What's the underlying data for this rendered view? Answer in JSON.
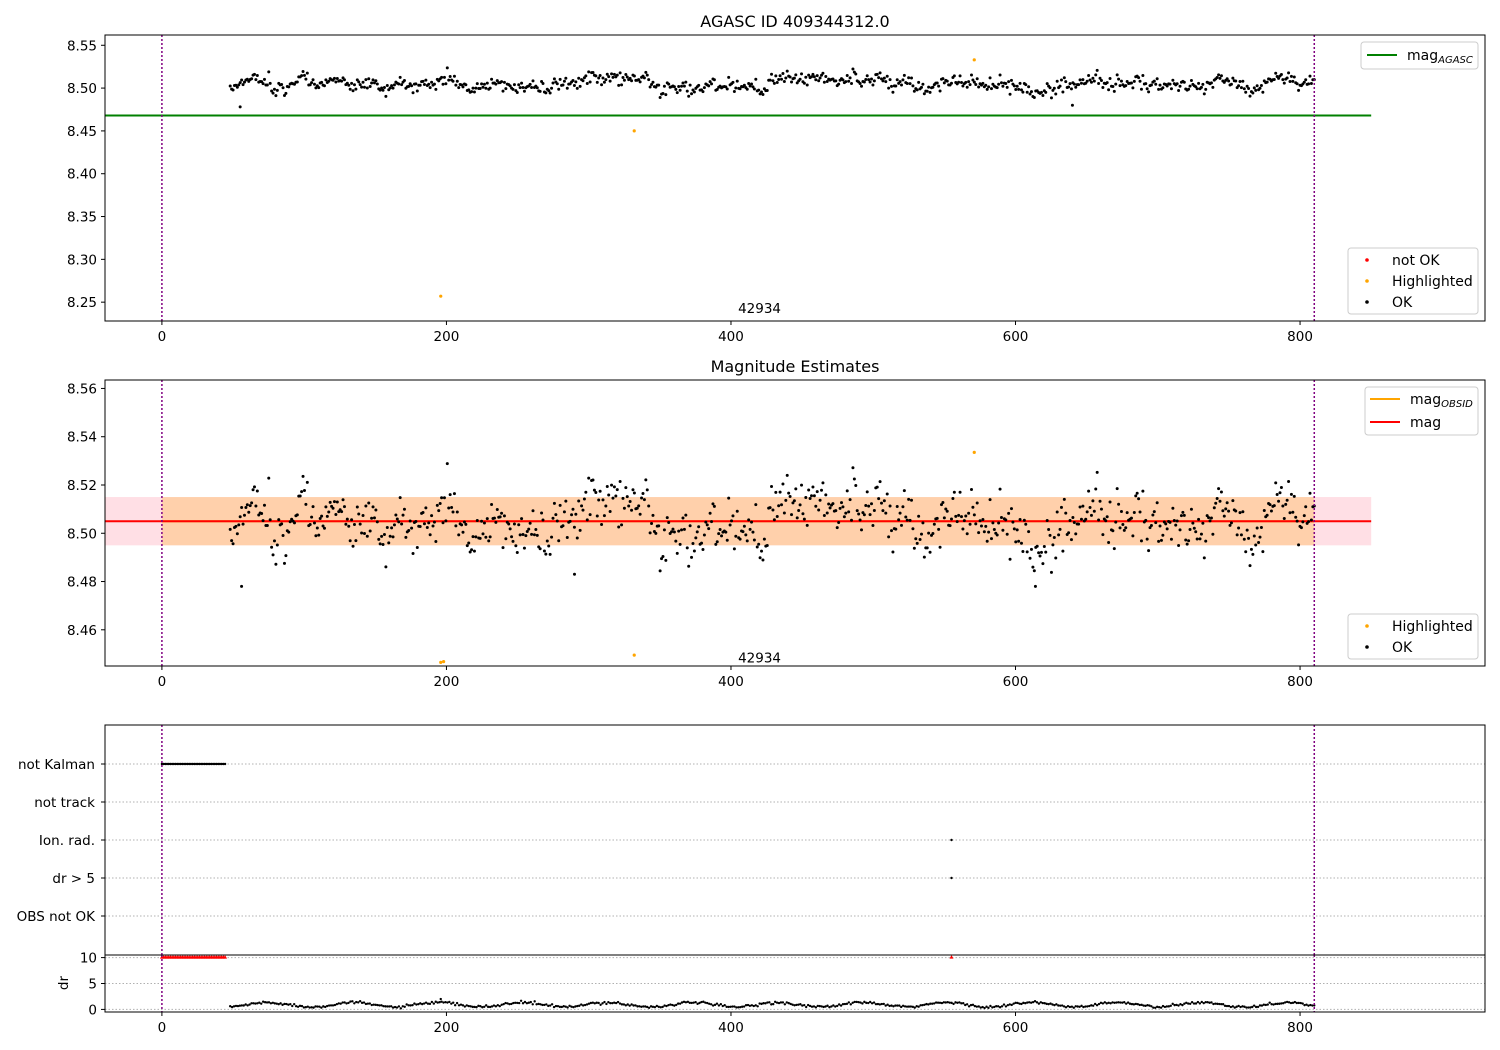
{
  "chart_data": [
    {
      "type": "scatter",
      "title": "AGASC ID 409344312.0",
      "xlabel": "",
      "ylabel": "",
      "xlim": [
        -40,
        930
      ],
      "ylim": [
        8.228,
        8.562
      ],
      "xticks": [
        0,
        200,
        400,
        600,
        800
      ],
      "yticks": [
        8.25,
        8.3,
        8.35,
        8.4,
        8.45,
        8.5,
        8.55
      ],
      "ytick_labels": [
        "8.25",
        "8.30",
        "8.35",
        "8.40",
        "8.45",
        "8.50",
        "8.55"
      ],
      "obsid_label": {
        "text": "42934",
        "x": 405,
        "y": 8.243
      },
      "vlines": [
        0,
        810
      ],
      "grid": false,
      "reference_lines": [
        {
          "name": "mag",
          "name_subscript": "AGASC",
          "y": 8.468,
          "x_range": [
            -40,
            850
          ],
          "color": "#008000"
        }
      ],
      "highlighted_points": [
        {
          "x": 196,
          "y": 8.257
        },
        {
          "x": 332,
          "y": 8.45
        },
        {
          "x": 571,
          "y": 8.533
        }
      ],
      "ok_series": {
        "x_start": 48,
        "x_end": 810,
        "count": 760,
        "mean": 8.505,
        "scatter": 0.007,
        "outliers": [
          {
            "x": 55,
            "y": 8.478
          },
          {
            "x": 640,
            "y": 8.48
          }
        ]
      },
      "legends": [
        {
          "position": "top-right",
          "entries": [
            {
              "label": "mag",
              "subscript": "AGASC",
              "kind": "line",
              "color": "#008000"
            }
          ]
        },
        {
          "position": "bottom-right",
          "entries": [
            {
              "label": "not OK",
              "kind": "point",
              "color": "#ff0000"
            },
            {
              "label": "Highlighted",
              "kind": "point",
              "color": "#ffa500"
            },
            {
              "label": "OK",
              "kind": "point",
              "color": "#000000"
            }
          ]
        }
      ]
    },
    {
      "type": "scatter",
      "title": "Magnitude Estimates",
      "xlabel": "",
      "ylabel": "",
      "xlim": [
        -40,
        930
      ],
      "ylim": [
        8.445,
        8.5635
      ],
      "xticks": [
        0,
        200,
        400,
        600,
        800
      ],
      "yticks": [
        8.46,
        8.48,
        8.5,
        8.52,
        8.54,
        8.56
      ],
      "ytick_labels": [
        "8.46",
        "8.48",
        "8.50",
        "8.52",
        "8.54",
        "8.56"
      ],
      "obsid_label": {
        "text": "42934",
        "x": 405,
        "y": 8.4485
      },
      "vlines": [
        0,
        810
      ],
      "grid": false,
      "reference_lines": [
        {
          "name": "mag",
          "name_subscript": "OBSID",
          "y": 8.505,
          "x_range": [
            0,
            810
          ],
          "color": "#ffa500"
        },
        {
          "name": "mag",
          "y": 8.505,
          "x_range": [
            -40,
            850
          ],
          "color": "#ff0000"
        }
      ],
      "bands": [
        {
          "y_range": [
            8.495,
            8.515
          ],
          "x_range": [
            -40,
            850
          ],
          "color": "#ffc0cb"
        },
        {
          "y_range": [
            8.495,
            8.515
          ],
          "x_range": [
            0,
            810
          ],
          "color": "#ffa500"
        }
      ],
      "highlighted_points": [
        {
          "x": 196,
          "y": 8.4465
        },
        {
          "x": 198,
          "y": 8.4468
        },
        {
          "x": 332,
          "y": 8.4495
        },
        {
          "x": 571,
          "y": 8.5335
        }
      ],
      "ok_series": {
        "x_start": 48,
        "x_end": 810,
        "count": 760,
        "mean": 8.505,
        "scatter": 0.009,
        "outliers": [
          {
            "x": 56,
            "y": 8.478
          },
          {
            "x": 614,
            "y": 8.478
          },
          {
            "x": 290,
            "y": 8.483
          }
        ]
      },
      "legends": [
        {
          "position": "top-right",
          "entries": [
            {
              "label": "mag",
              "subscript": "OBSID",
              "kind": "line",
              "color": "#ffa500"
            },
            {
              "label": "mag",
              "kind": "line",
              "color": "#ff0000"
            }
          ]
        },
        {
          "position": "bottom-right",
          "entries": [
            {
              "label": "Highlighted",
              "kind": "point",
              "color": "#ffa500"
            },
            {
              "label": "OK",
              "kind": "point",
              "color": "#000000"
            }
          ]
        }
      ]
    },
    {
      "type": "scatter",
      "title": "",
      "xlabel": "",
      "ylabel": "",
      "xlim": [
        -40,
        930
      ],
      "categories": [
        "not Kalman",
        "not track",
        "Ion. rad.",
        "dr > 5",
        "OBS not OK"
      ],
      "vlines": [
        0,
        810
      ],
      "grid": true,
      "flags": [
        {
          "category": "not Kalman",
          "x_range": [
            0,
            45
          ]
        },
        {
          "category": "Ion. rad.",
          "x": 555
        },
        {
          "category": "dr > 5",
          "x": 555
        }
      ]
    },
    {
      "type": "scatter",
      "title": "",
      "xlabel": "",
      "ylabel": "dr",
      "xlim": [
        -40,
        930
      ],
      "ylim": [
        -0.5,
        10.5
      ],
      "xticks": [
        0,
        200,
        400,
        600,
        800
      ],
      "yticks": [
        0,
        5,
        10
      ],
      "ytick_labels": [
        "0",
        "5",
        "10"
      ],
      "vlines": [
        0,
        810
      ],
      "grid": true,
      "capped_points": {
        "x_range": [
          0,
          45
        ],
        "y": 10,
        "color": "#ff0000",
        "extra_x": [
          555
        ]
      },
      "dr_series": {
        "x_start": 48,
        "x_end": 810,
        "base": 0.9,
        "amplitude": 0.7,
        "outlier": {
          "x": 196,
          "y": 2.0
        }
      }
    }
  ]
}
